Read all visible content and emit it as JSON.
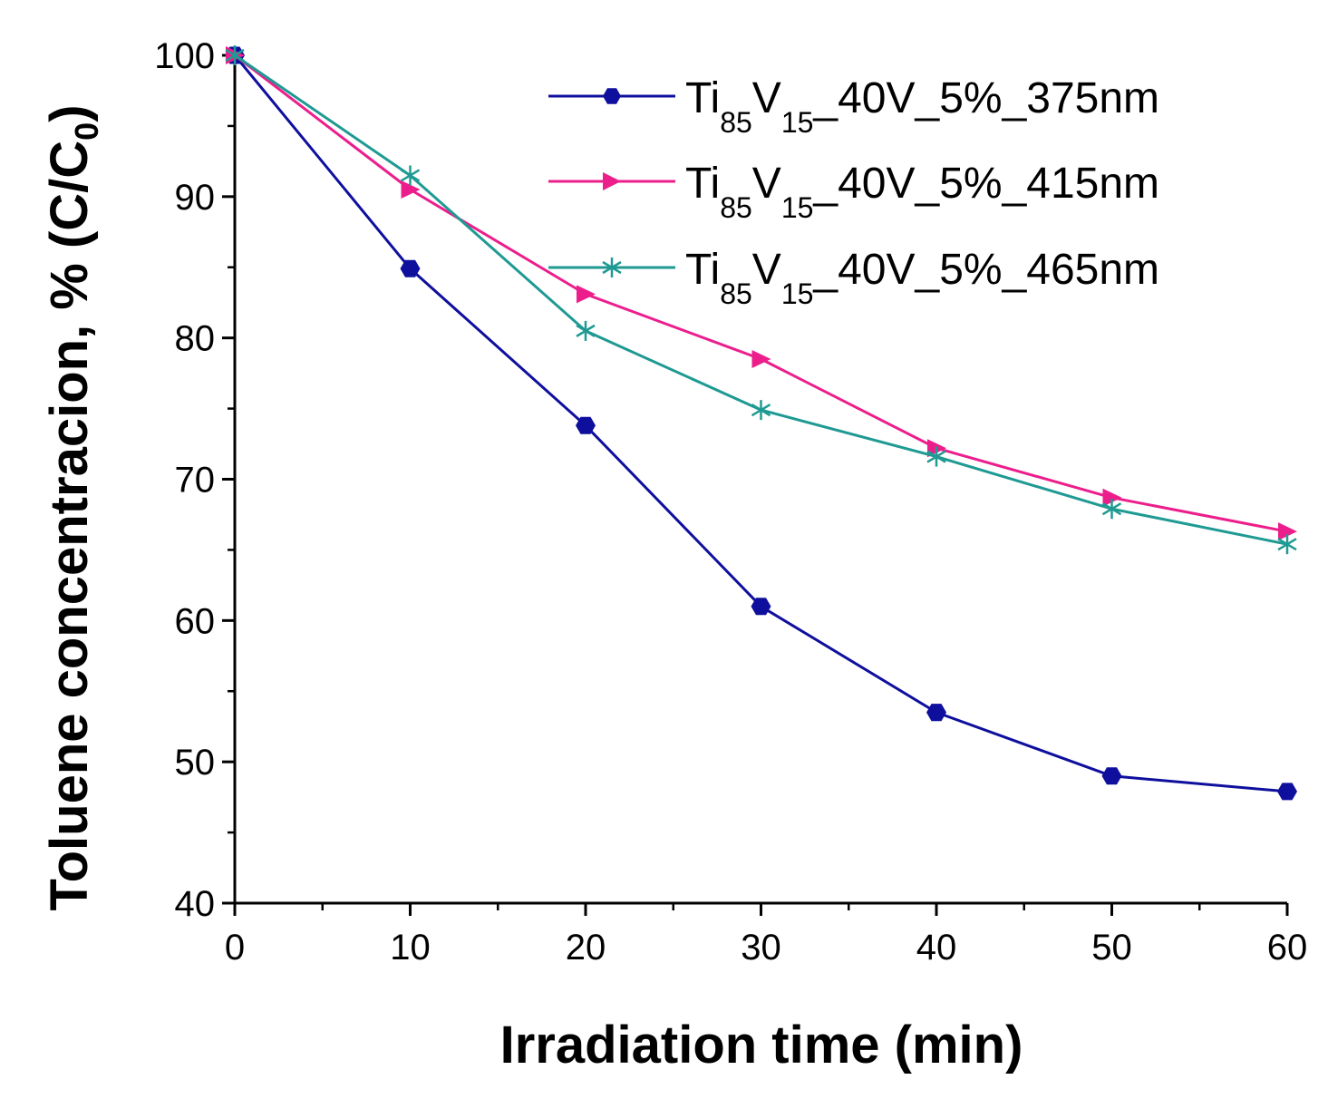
{
  "chart_data": {
    "type": "line",
    "title": "",
    "xlabel": "Irradiation time (min)",
    "ylabel_prefix": "Toluene concentracion, % (C/C",
    "ylabel_sub": "0",
    "ylabel_suffix": ")",
    "xlim": [
      0,
      60
    ],
    "ylim": [
      40,
      100
    ],
    "xticks": [
      0,
      10,
      20,
      30,
      40,
      50,
      60
    ],
    "yticks": [
      40,
      50,
      60,
      70,
      80,
      90,
      100
    ],
    "grid": false,
    "legend_position": "top-right",
    "x": [
      0,
      10,
      20,
      30,
      40,
      50,
      60
    ],
    "series": [
      {
        "name": "Ti85V15_40V_5%_375nm",
        "label_parts": {
          "a": "Ti",
          "s1": "85",
          "b": "V",
          "s2": "15",
          "c": "_40V_5%_375nm"
        },
        "color": "#0f0f9e",
        "marker": "hexagon",
        "values": [
          100,
          84.9,
          73.8,
          61.0,
          53.5,
          49.0,
          47.9
        ]
      },
      {
        "name": "Ti85V15_40V_5%_415nm",
        "label_parts": {
          "a": "Ti",
          "s1": "85",
          "b": "V",
          "s2": "15",
          "c": "_40V_5%_415nm"
        },
        "color": "#ec1e8c",
        "marker": "triangle-right",
        "values": [
          100,
          90.5,
          83.1,
          78.5,
          72.2,
          68.7,
          66.3
        ]
      },
      {
        "name": "Ti85V15_40V_5%_465nm",
        "label_parts": {
          "a": "Ti",
          "s1": "85",
          "b": "V",
          "s2": "15",
          "c": "_40V_5%_465nm"
        },
        "color": "#1f9a93",
        "marker": "asterisk",
        "values": [
          100,
          91.5,
          80.5,
          74.9,
          71.6,
          67.9,
          65.4
        ]
      }
    ]
  }
}
